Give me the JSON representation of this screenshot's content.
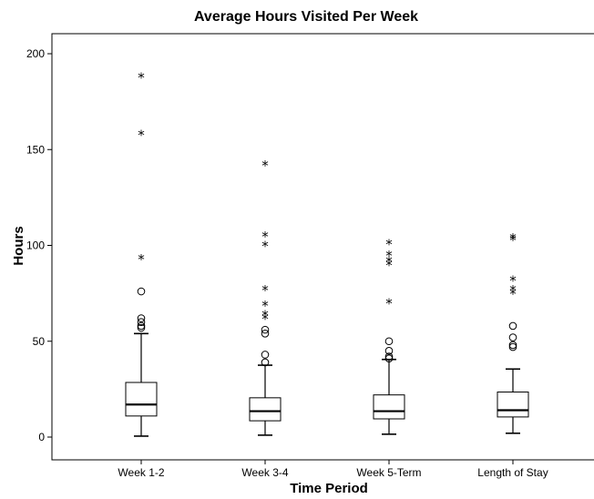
{
  "chart_data": {
    "type": "boxplot",
    "title": "Average Hours Visited Per Week",
    "xlabel": "Time Period",
    "ylabel": "Hours",
    "ylim": [
      -12,
      212
    ],
    "yticks": [
      0,
      50,
      100,
      150,
      200
    ],
    "grid": false,
    "categories": [
      "Week 1-2",
      "Week 3-4",
      "Week 5-Term",
      "Length of Stay"
    ],
    "boxes": [
      {
        "category": "Week 1-2",
        "whisker_low": 0.5,
        "q1": 11,
        "median": 17,
        "q3": 28.5,
        "whisker_high": 54,
        "outliers": [
          57,
          58,
          60,
          62,
          76
        ],
        "extremes": [
          93,
          158,
          188
        ]
      },
      {
        "category": "Week 3-4",
        "whisker_low": 1,
        "q1": 8.5,
        "median": 13.5,
        "q3": 20.5,
        "whisker_high": 37.5,
        "outliers": [
          39,
          43,
          54,
          56
        ],
        "extremes": [
          62,
          64,
          69,
          77,
          100,
          105,
          142
        ]
      },
      {
        "category": "Week 5-Term",
        "whisker_low": 1.5,
        "q1": 9.5,
        "median": 13.5,
        "q3": 22,
        "whisker_high": 40.5,
        "outliers": [
          41,
          42,
          45,
          50
        ],
        "extremes": [
          70,
          90,
          92,
          95,
          101
        ]
      },
      {
        "category": "Length of Stay",
        "whisker_low": 2,
        "q1": 10.5,
        "median": 14,
        "q3": 23.5,
        "whisker_high": 35.5,
        "outliers": [
          47,
          48,
          52,
          58
        ],
        "extremes": [
          75,
          77,
          82,
          103,
          104
        ]
      }
    ]
  }
}
